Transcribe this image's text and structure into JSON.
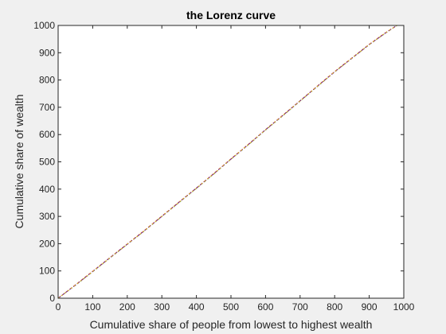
{
  "chart_data": {
    "type": "line",
    "title": "the Lorenz curve",
    "xlabel": "Cumulative share of people from lowest to highest wealth",
    "ylabel": "Cumulative share of wealth",
    "xlim": [
      0,
      1000
    ],
    "ylim": [
      0,
      1000
    ],
    "xticks": [
      0,
      100,
      200,
      300,
      400,
      500,
      600,
      700,
      800,
      900,
      1000
    ],
    "yticks": [
      0,
      100,
      200,
      300,
      400,
      500,
      600,
      700,
      800,
      900,
      1000
    ],
    "grid": false,
    "series": [
      {
        "color": "#7f7f00",
        "x": [
          0,
          50,
          100,
          150,
          200,
          250,
          300,
          350,
          400,
          450,
          500,
          550,
          600,
          650,
          700,
          750,
          800,
          850,
          900,
          950,
          980
        ],
        "y": [
          0,
          48,
          98,
          148,
          198,
          248,
          300,
          352,
          403,
          456,
          510,
          563,
          617,
          670,
          723,
          777,
          830,
          880,
          930,
          975,
          1000
        ]
      },
      {
        "color": "#3c8dd9",
        "x": [
          0,
          50,
          100,
          150,
          200,
          250,
          300,
          350,
          400,
          450,
          500,
          550,
          600,
          650,
          700,
          750,
          800,
          850,
          900,
          950,
          980
        ],
        "y": [
          0,
          47,
          97,
          147,
          197,
          247,
          299,
          351,
          402,
          455,
          509,
          562,
          616,
          669,
          722,
          776,
          829,
          879,
          929,
          974,
          1000
        ]
      },
      {
        "color": "#d9531e",
        "x": [
          0,
          50,
          100,
          150,
          200,
          250,
          300,
          350,
          400,
          450,
          500,
          550,
          600,
          650,
          700,
          750,
          800,
          850,
          900,
          950,
          980
        ],
        "y": [
          0,
          49,
          99,
          149,
          199,
          249,
          301,
          353,
          404,
          457,
          511,
          564,
          618,
          671,
          724,
          778,
          831,
          881,
          931,
          976,
          1000
        ]
      },
      {
        "color": "#2ca02c",
        "x": [
          0,
          50,
          100,
          150,
          200,
          250,
          300,
          350,
          400,
          450,
          500,
          550,
          600,
          650,
          700,
          750,
          800,
          850,
          900,
          950,
          980
        ],
        "y": [
          0,
          48,
          97,
          148,
          198,
          247,
          300,
          351,
          403,
          455,
          510,
          562,
          617,
          669,
          723,
          776,
          830,
          880,
          930,
          975,
          1000
        ]
      },
      {
        "color": "#7e2f8e",
        "x": [
          0,
          50,
          100,
          150,
          200,
          250,
          300,
          350,
          400,
          450,
          500,
          550,
          600,
          650,
          700,
          750,
          800,
          850,
          900,
          950,
          980
        ],
        "y": [
          0,
          48,
          98,
          149,
          198,
          248,
          300,
          352,
          404,
          456,
          510,
          563,
          618,
          670,
          724,
          777,
          830,
          880,
          930,
          975,
          1000
        ]
      },
      {
        "color": "#edb120",
        "x": [
          0,
          50,
          100,
          150,
          200,
          250,
          300,
          350,
          400,
          450,
          500,
          550,
          600,
          650,
          700,
          750,
          800,
          850,
          900,
          950,
          980
        ],
        "y": [
          0,
          48,
          98,
          148,
          198,
          248,
          300,
          352,
          403,
          456,
          510,
          563,
          617,
          670,
          723,
          777,
          830,
          880,
          930,
          975,
          1000
        ]
      }
    ]
  }
}
